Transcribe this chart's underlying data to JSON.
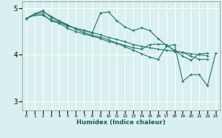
{
  "xlabel": "Humidex (Indice chaleur)",
  "xlim": [
    -0.5,
    23.5
  ],
  "ylim": [
    2.8,
    5.15
  ],
  "yticks": [
    3,
    4,
    5
  ],
  "xticks": [
    0,
    1,
    2,
    3,
    4,
    5,
    6,
    7,
    8,
    9,
    10,
    11,
    12,
    13,
    14,
    15,
    16,
    17,
    18,
    19,
    20,
    21,
    22,
    23
  ],
  "bg_color": "#d8f0ef",
  "grid_color": "#ffffff",
  "line_color": "#2e7d6e",
  "series": [
    [
      4.78,
      4.88,
      4.93,
      4.83,
      4.73,
      4.63,
      4.57,
      4.52,
      4.47,
      4.9,
      4.92,
      4.73,
      4.6,
      4.52,
      4.58,
      4.52,
      4.35,
      4.2,
      4.1,
      3.97,
      3.88,
      4.02,
      4.03,
      null
    ],
    [
      4.78,
      4.88,
      4.95,
      4.8,
      4.73,
      4.65,
      4.55,
      4.48,
      4.42,
      4.38,
      4.32,
      4.25,
      4.17,
      4.1,
      4.02,
      3.95,
      3.9,
      4.18,
      4.22,
      3.43,
      3.57,
      3.57,
      3.33,
      4.03
    ],
    [
      4.78,
      4.88,
      4.88,
      4.73,
      4.68,
      4.57,
      4.5,
      4.45,
      4.4,
      4.35,
      4.28,
      4.25,
      4.2,
      4.15,
      4.12,
      4.22,
      4.23,
      4.22,
      4.08,
      4.05,
      3.97,
      3.9,
      3.9,
      null
    ],
    [
      4.78,
      4.85,
      4.85,
      4.75,
      4.7,
      4.62,
      4.57,
      4.53,
      4.48,
      4.43,
      4.37,
      4.33,
      4.28,
      4.22,
      4.18,
      4.15,
      4.12,
      4.1,
      4.07,
      4.05,
      4.02,
      4.0,
      3.98,
      null
    ]
  ]
}
